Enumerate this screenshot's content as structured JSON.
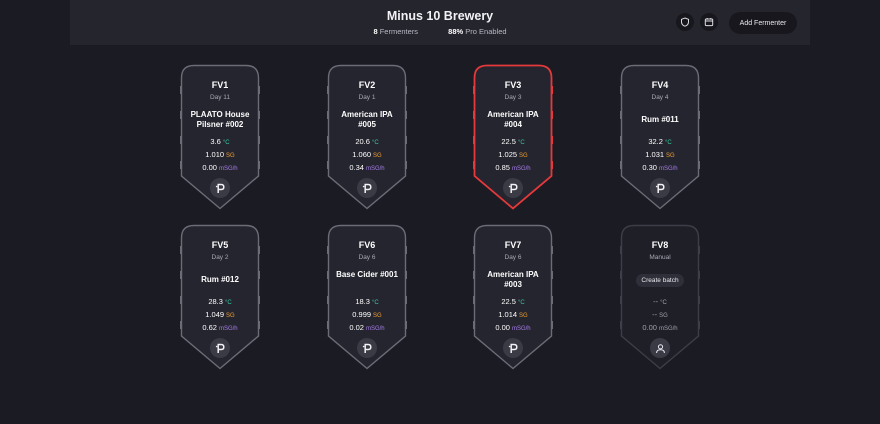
{
  "header": {
    "title": "Minus 10 Brewery",
    "fermenters_count": "8",
    "fermenters_label": "Fermenters",
    "pro_percent": "88%",
    "pro_label": "Pro Enabled",
    "add_fermenter_label": "Add Fermenter",
    "icons": [
      "shield-icon",
      "calendar-icon"
    ]
  },
  "colors": {
    "background": "#1b1b23",
    "card": "#25252f",
    "card_border": "#6c6c77",
    "alert_border": "#e5393b",
    "temp_unit": "#38c9a0",
    "sg_unit": "#f0a030",
    "rate_unit": "#a67de8"
  },
  "fermenters": [
    {
      "name": "FV1",
      "day": "Day 11",
      "beer": "PLAATO House Pilsner #002",
      "temp": "3.6",
      "temp_unit": "°C",
      "sg": "1.010",
      "sg_unit": "SG",
      "rate": "0.00",
      "rate_unit": "mSG/h",
      "status": "normal"
    },
    {
      "name": "FV2",
      "day": "Day 1",
      "beer": "American IPA #005",
      "temp": "20.6",
      "temp_unit": "°C",
      "sg": "1.060",
      "sg_unit": "SG",
      "rate": "0.34",
      "rate_unit": "mSG/h",
      "status": "normal"
    },
    {
      "name": "FV3",
      "day": "Day 3",
      "beer": "American IPA #004",
      "temp": "22.5",
      "temp_unit": "°C",
      "sg": "1.025",
      "sg_unit": "SG",
      "rate": "0.85",
      "rate_unit": "mSG/h",
      "status": "alert"
    },
    {
      "name": "FV4",
      "day": "Day 4",
      "beer": "Rum #011",
      "temp": "32.2",
      "temp_unit": "°C",
      "sg": "1.031",
      "sg_unit": "SG",
      "rate": "0.30",
      "rate_unit": "mSG/h",
      "status": "normal"
    },
    {
      "name": "FV5",
      "day": "Day 2",
      "beer": "Rum #012",
      "temp": "28.3",
      "temp_unit": "°C",
      "sg": "1.049",
      "sg_unit": "SG",
      "rate": "0.62",
      "rate_unit": "mSG/h",
      "status": "normal"
    },
    {
      "name": "FV6",
      "day": "Day 6",
      "beer": "Base Cider #001",
      "temp": "18.3",
      "temp_unit": "°C",
      "sg": "0.999",
      "sg_unit": "SG",
      "rate": "0.02",
      "rate_unit": "mSG/h",
      "status": "normal"
    },
    {
      "name": "FV7",
      "day": "Day 6",
      "beer": "American IPA #003",
      "temp": "22.5",
      "temp_unit": "°C",
      "sg": "1.014",
      "sg_unit": "SG",
      "rate": "0.00",
      "rate_unit": "mSG/h",
      "status": "normal"
    },
    {
      "name": "FV8",
      "day": "Manual",
      "create_batch_label": "Create batch",
      "temp": "--",
      "temp_unit": "°C",
      "sg": "--",
      "sg_unit": "SG",
      "rate": "0.00",
      "rate_unit": "mSG/h",
      "status": "manual"
    }
  ]
}
